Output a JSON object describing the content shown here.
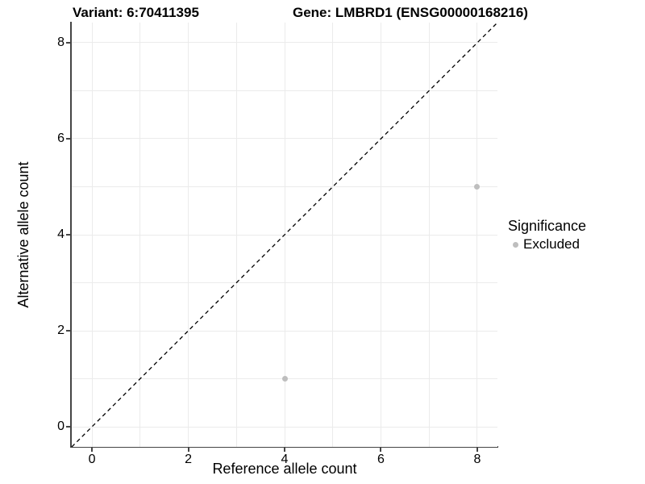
{
  "figure": {
    "title_left": "Variant: 6:70411395",
    "title_right": "Gene: LMBRD1 (ENSG00000168216)"
  },
  "chart_data": {
    "type": "scatter",
    "title": "Variant: 6:70411395   Gene: LMBRD1 (ENSG00000168216)",
    "xlabel": "Reference allele count",
    "ylabel": "Alternative allele count",
    "xlim": [
      -0.42,
      8.42
    ],
    "ylim": [
      -0.42,
      8.42
    ],
    "x_ticks": [
      0,
      2,
      4,
      6,
      8
    ],
    "y_ticks": [
      0,
      2,
      4,
      6,
      8
    ],
    "grid": true,
    "grid_interval": 1,
    "series": [
      {
        "name": "Excluded",
        "color": "#bebebe",
        "points": [
          {
            "x": 4,
            "y": 1
          },
          {
            "x": 8,
            "y": 5
          }
        ]
      }
    ],
    "reference_line": {
      "type": "identity y=x",
      "style": "dashed",
      "color": "#000000",
      "x1": -0.42,
      "y1": -0.42,
      "x2": 8.42,
      "y2": 8.42
    },
    "legend": {
      "position": "right",
      "title": "Significance",
      "items": [
        {
          "label": "Excluded",
          "color": "#bebebe"
        }
      ]
    }
  },
  "colors": {
    "background": "#ffffff",
    "grid": "#ebebeb",
    "axis": "#454545",
    "text": "#000000",
    "point": "#bebebe"
  }
}
